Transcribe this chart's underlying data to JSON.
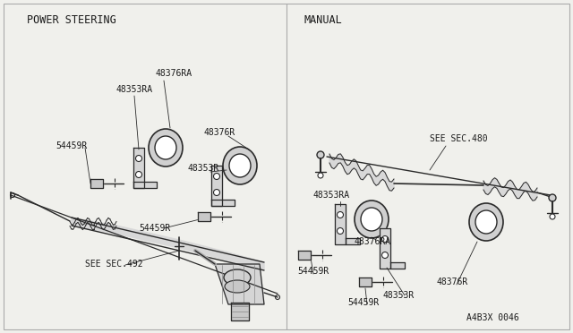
{
  "background_color": "#f0f0ec",
  "text_color": "#1a1a1a",
  "line_color": "#2a2a2a",
  "border_color": "#999999",
  "left_section_title": "POWER STEERING",
  "right_section_title": "MANUAL",
  "catalog_number": "A4B3X 0046",
  "font_size_labels": 7,
  "font_size_section": 8.5,
  "font_size_catalog": 7,
  "figsize": [
    6.4,
    3.72
  ],
  "dpi": 100
}
